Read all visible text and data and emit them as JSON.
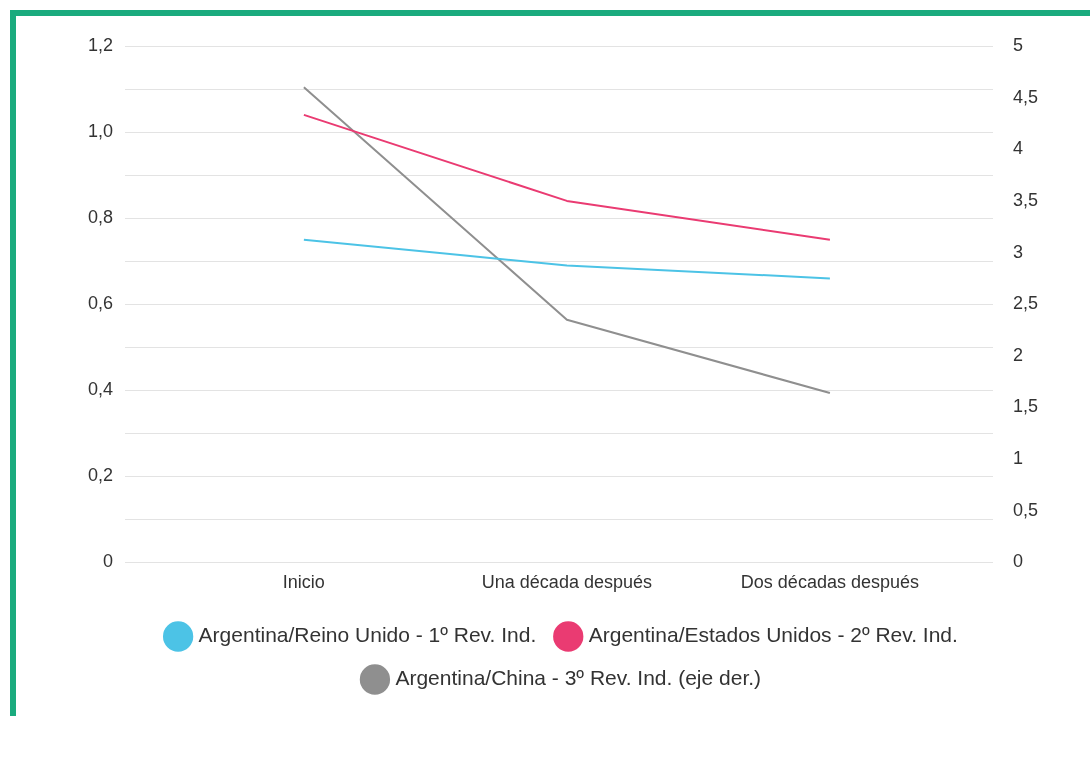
{
  "chart_data": {
    "type": "line",
    "categories": [
      "Inicio",
      "Una década después",
      "Dos décadas después"
    ],
    "series": [
      {
        "name": "Argentina/Reino Unido - 1º Rev. Ind.",
        "color": "#4cc3e6",
        "values": [
          0.75,
          0.69,
          0.66
        ]
      },
      {
        "name": "Argentina/Estados Unidos - 2º Rev. Ind.",
        "color": "#ea3b72",
        "values": [
          1.04,
          0.84,
          0.75
        ]
      },
      {
        "name": "Argentina/China - 3º Rev. Ind. (eje der.)",
        "color": "#8f8f8f",
        "values": [
          4.6,
          2.35,
          1.64
        ],
        "axis": "y2"
      }
    ],
    "ylim": [
      0,
      1.2
    ],
    "yticks": [
      0,
      {
        "value": 0.1,
        "label": null
      },
      {
        "value": 0.2,
        "label": "0,2"
      },
      {
        "value": 0.3,
        "label": null
      },
      {
        "value": 0.4,
        "label": "0,4"
      },
      {
        "value": 0.5,
        "label": null
      },
      {
        "value": 0.6,
        "label": "0,6"
      },
      {
        "value": 0.7,
        "label": null
      },
      {
        "value": 0.8,
        "label": "0,8"
      },
      {
        "value": 0.9,
        "label": null
      },
      {
        "value": 1.0,
        "label": "1,0"
      },
      {
        "value": 1.1,
        "label": null
      },
      {
        "value": 1.2,
        "label": "1,2"
      }
    ],
    "y2lim": [
      0,
      5
    ],
    "y2ticks": [
      0,
      {
        "value": 0.5,
        "label": "0,5"
      },
      1,
      {
        "value": 1.5,
        "label": "1,5"
      },
      2,
      {
        "value": 2.5,
        "label": "2,5"
      },
      3,
      {
        "value": 3.5,
        "label": "3,5"
      },
      4,
      {
        "value": 4.5,
        "label": "4,5"
      },
      5
    ],
    "grid": "y",
    "legend": "bottom",
    "marker": "none",
    "line_style": "solid"
  }
}
